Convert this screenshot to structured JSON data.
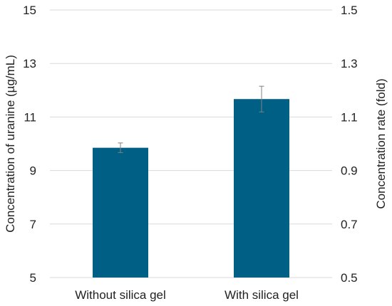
{
  "chart_data": {
    "type": "bar",
    "categories": [
      "Without silica gel",
      "With silica gel"
    ],
    "values": [
      9.85,
      11.67
    ],
    "error": [
      0.18,
      0.48
    ],
    "ylabel": "Concentration of uranine (µg/mL)",
    "ylabel_right": "Concentration rate (fold)",
    "ylim": [
      5,
      15
    ],
    "yticks": [
      "5",
      "7",
      "9",
      "11",
      "13",
      "15"
    ],
    "ylim_right": [
      0.5,
      1.5
    ],
    "yticks_right": [
      "0.5",
      "0.7",
      "0.9",
      "1.1",
      "1.3",
      "1.5"
    ],
    "grid": true,
    "bar_color": "#005f85",
    "grid_color": "#d9d9d9",
    "error_color": "#808080"
  }
}
